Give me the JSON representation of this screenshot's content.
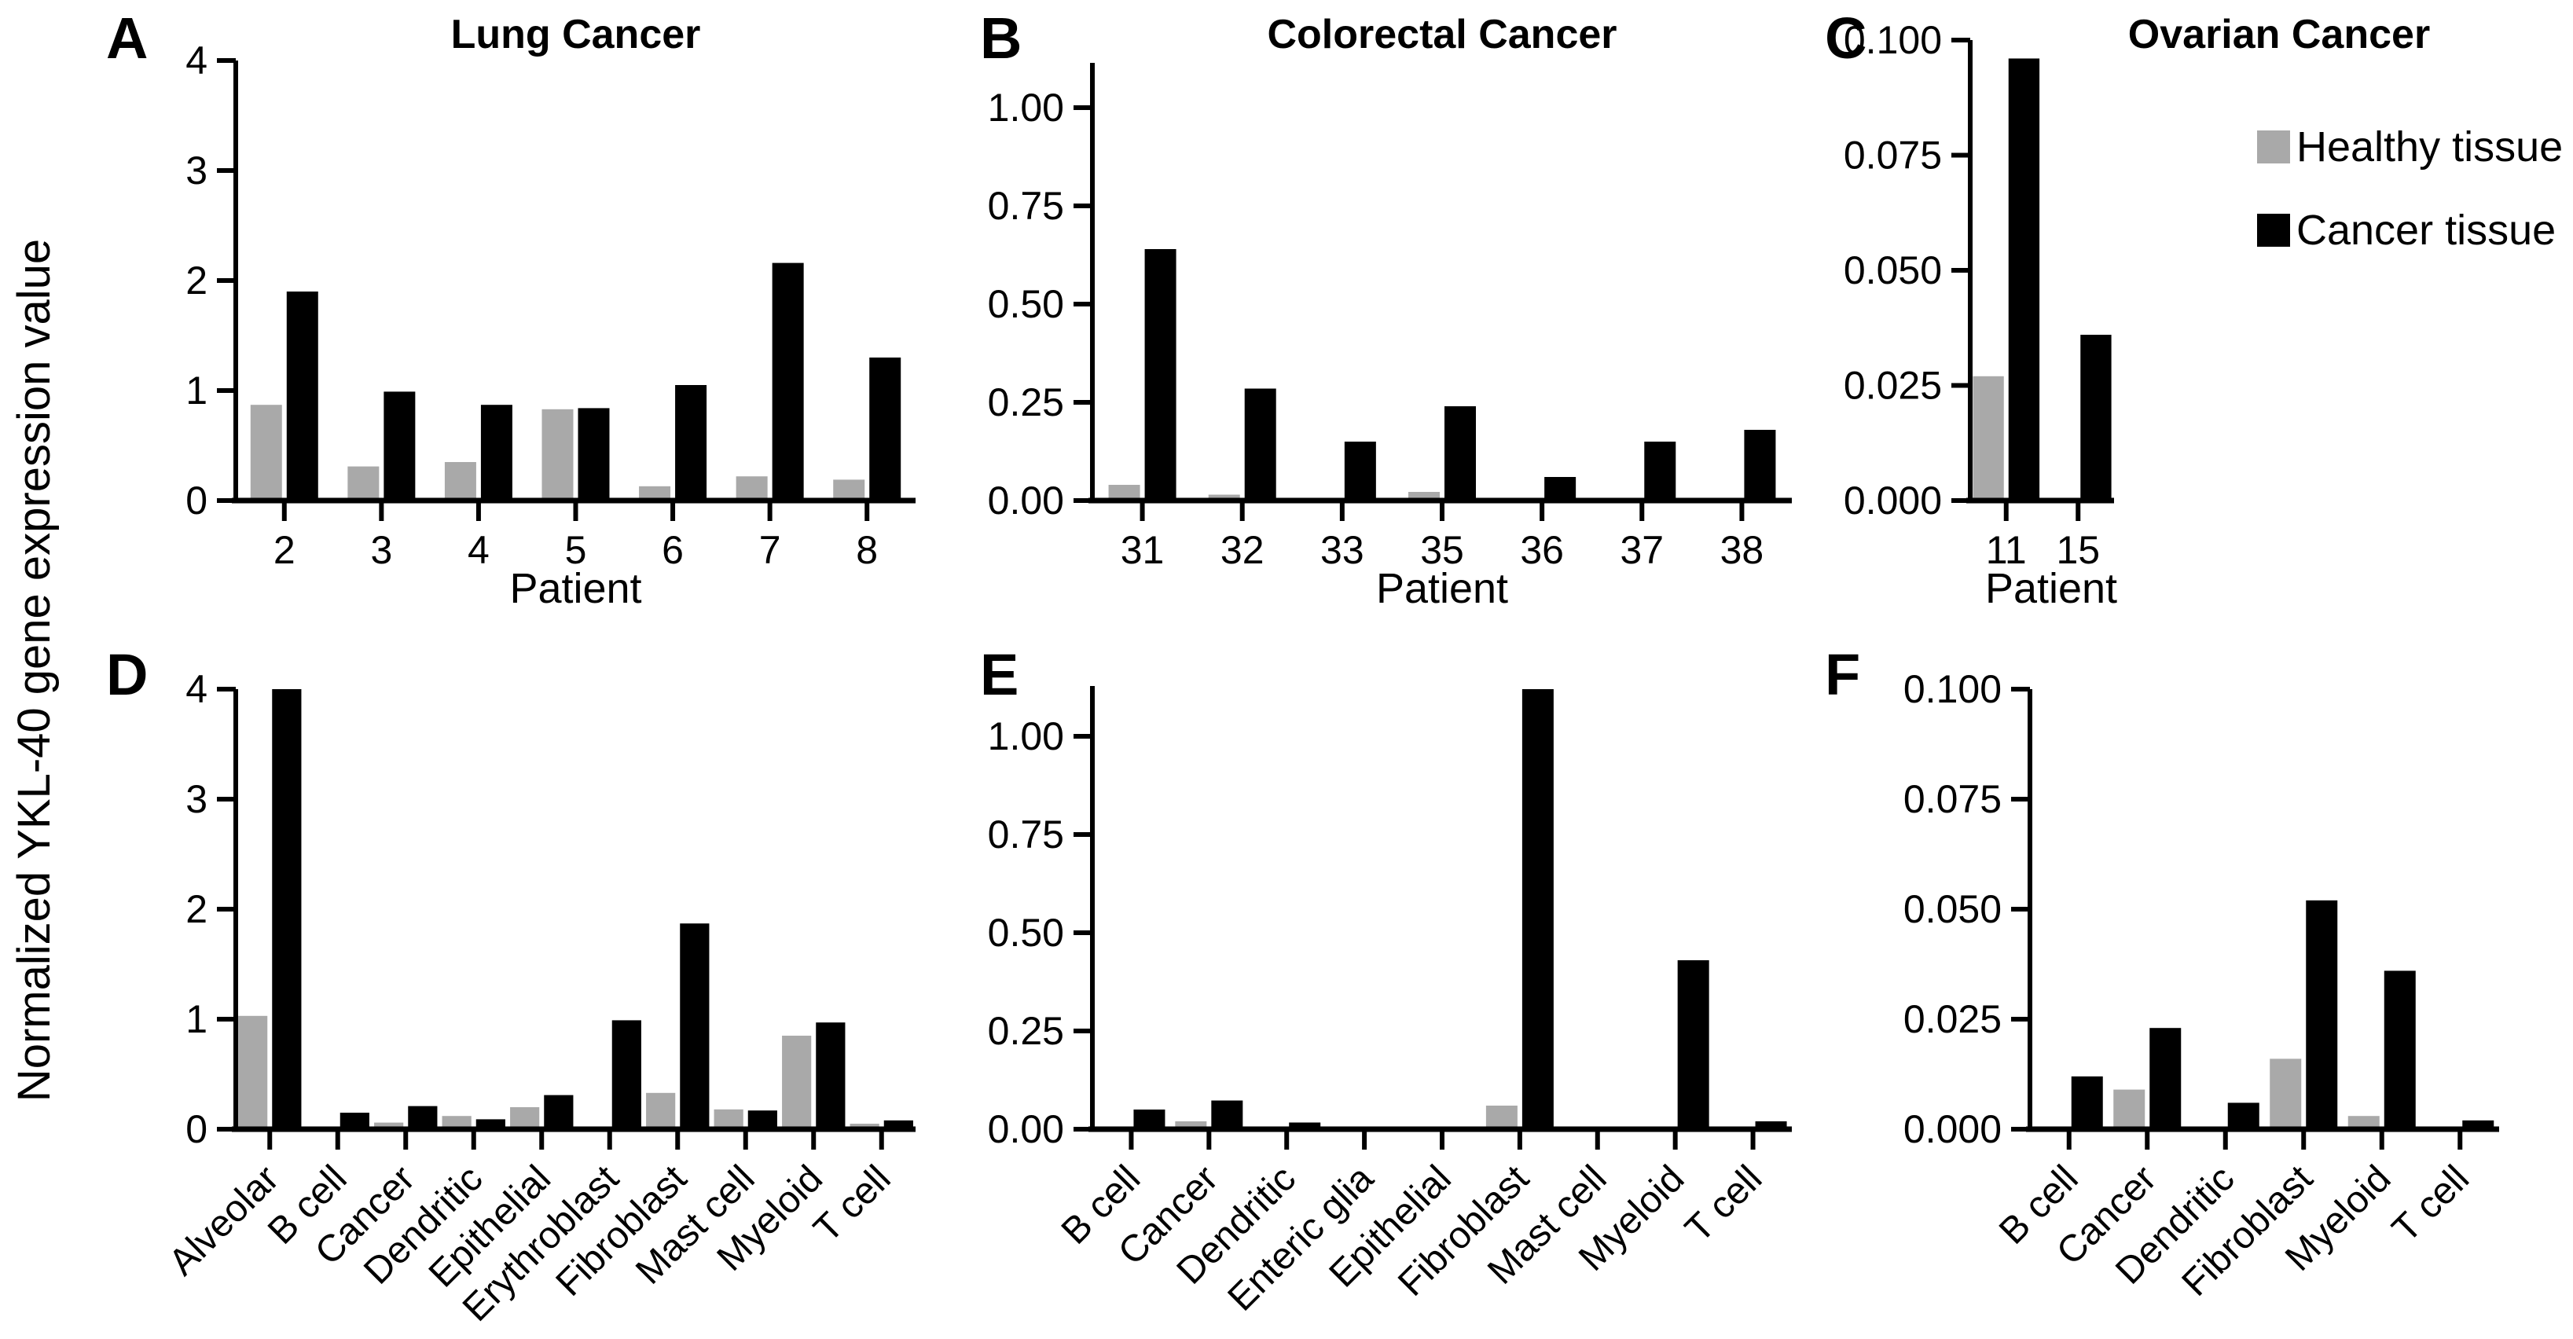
{
  "figure": {
    "y_axis_label": "Normalized YKL-40 gene expression value"
  },
  "legend": {
    "items": [
      {
        "label": "Healthy tissue",
        "color": "#A9A9A9"
      },
      {
        "label": "Cancer tissue",
        "color": "#000000"
      }
    ]
  },
  "chart_data": [
    {
      "type": "bar",
      "panel_label": "A",
      "title": "Lung Cancer",
      "xlabel": "Patient",
      "categories": [
        "2",
        "3",
        "4",
        "5",
        "6",
        "7",
        "8"
      ],
      "series": [
        {
          "name": "Healthy tissue",
          "color": "#A9A9A9",
          "values": [
            0.87,
            0.31,
            0.35,
            0.83,
            0.13,
            0.22,
            0.19
          ]
        },
        {
          "name": "Cancer tissue",
          "color": "#000000",
          "values": [
            1.9,
            0.99,
            0.87,
            0.84,
            1.05,
            2.16,
            1.3
          ]
        }
      ],
      "ylim": [
        0,
        4
      ],
      "yticks": {
        "values": [
          0,
          1,
          2,
          3,
          4
        ],
        "labels": [
          "0",
          "1",
          "2",
          "3",
          "4"
        ]
      },
      "grid": false
    },
    {
      "type": "bar",
      "panel_label": "B",
      "title": "Colorectal Cancer",
      "xlabel": "Patient",
      "categories": [
        "31",
        "32",
        "33",
        "35",
        "36",
        "37",
        "38"
      ],
      "series": [
        {
          "name": "Healthy tissue",
          "color": "#A9A9A9",
          "values": [
            0.04,
            0.015,
            0.007,
            0.022,
            0,
            0,
            0
          ]
        },
        {
          "name": "Cancer tissue",
          "color": "#000000",
          "values": [
            0.64,
            0.285,
            0.15,
            0.24,
            0.06,
            0.15,
            0.18
          ]
        }
      ],
      "ylim": [
        0,
        1.115
      ],
      "yticks": {
        "values": [
          0,
          0.25,
          0.5,
          0.75,
          1.0
        ],
        "labels": [
          "0.00",
          "0.25",
          "0.50",
          "0.75",
          "1.00"
        ]
      },
      "grid": false
    },
    {
      "type": "bar",
      "panel_label": "C",
      "title": "Ovarian Cancer",
      "xlabel": "Patient",
      "categories": [
        "11",
        "15"
      ],
      "series": [
        {
          "name": "Healthy tissue",
          "color": "#A9A9A9",
          "values": [
            0.027,
            0
          ]
        },
        {
          "name": "Cancer tissue",
          "color": "#000000",
          "values": [
            0.096,
            0.036
          ]
        }
      ],
      "ylim": [
        0,
        0.1
      ],
      "yticks": {
        "values": [
          0,
          0.025,
          0.05,
          0.075,
          0.1
        ],
        "labels": [
          "0.000",
          "0.025",
          "0.050",
          "0.075",
          "0.100"
        ]
      },
      "grid": false
    },
    {
      "type": "bar",
      "panel_label": "D",
      "title": "",
      "xlabel": "",
      "categories": [
        "Alveolar",
        "B cell",
        "Cancer",
        "Dendritic",
        "Epithelial",
        "Erythroblast",
        "Fibroblast",
        "Mast cell",
        "Myeloid",
        "T cell"
      ],
      "series": [
        {
          "name": "Healthy tissue",
          "color": "#A9A9A9",
          "values": [
            1.03,
            0,
            0.06,
            0.12,
            0.2,
            0,
            0.33,
            0.18,
            0.85,
            0.05
          ]
        },
        {
          "name": "Cancer tissue",
          "color": "#000000",
          "values": [
            4.0,
            0.15,
            0.21,
            0.09,
            0.31,
            0.99,
            1.87,
            0.17,
            0.97,
            0.08
          ]
        }
      ],
      "ylim": [
        0,
        4
      ],
      "yticks": {
        "values": [
          0,
          1,
          2,
          3,
          4
        ],
        "labels": [
          "0",
          "1",
          "2",
          "3",
          "4"
        ]
      },
      "grid": false
    },
    {
      "type": "bar",
      "panel_label": "E",
      "title": "",
      "xlabel": "",
      "categories": [
        "B cell",
        "Cancer",
        "Dendritic",
        "Enteric glia",
        "Epithelial",
        "Fibroblast",
        "Mast cell",
        "Myeloid",
        "T cell"
      ],
      "series": [
        {
          "name": "Healthy tissue",
          "color": "#A9A9A9",
          "values": [
            0,
            0.02,
            0,
            0,
            0,
            0.06,
            0,
            0.005,
            0
          ]
        },
        {
          "name": "Cancer tissue",
          "color": "#000000",
          "values": [
            0.05,
            0.073,
            0.017,
            0,
            0,
            1.12,
            0,
            0.43,
            0.02
          ]
        }
      ],
      "ylim": [
        0,
        1.128
      ],
      "yticks": {
        "values": [
          0,
          0.25,
          0.5,
          0.75,
          1.0
        ],
        "labels": [
          "0.00",
          "0.25",
          "0.50",
          "0.75",
          "1.00"
        ]
      },
      "grid": false
    },
    {
      "type": "bar",
      "panel_label": "F",
      "title": "",
      "xlabel": "",
      "categories": [
        "B cell",
        "Cancer",
        "Dendritic",
        "Fibroblast",
        "Myeloid",
        "T cell"
      ],
      "series": [
        {
          "name": "Healthy tissue",
          "color": "#A9A9A9",
          "values": [
            0,
            0.009,
            0,
            0.016,
            0.003,
            0
          ]
        },
        {
          "name": "Cancer tissue",
          "color": "#000000",
          "values": [
            0.012,
            0.023,
            0.006,
            0.052,
            0.036,
            0.002
          ]
        }
      ],
      "ylim": [
        0,
        0.1
      ],
      "yticks": {
        "values": [
          0,
          0.025,
          0.05,
          0.075,
          0.1
        ],
        "labels": [
          "0.000",
          "0.025",
          "0.050",
          "0.075",
          "0.100"
        ]
      },
      "grid": false
    }
  ]
}
